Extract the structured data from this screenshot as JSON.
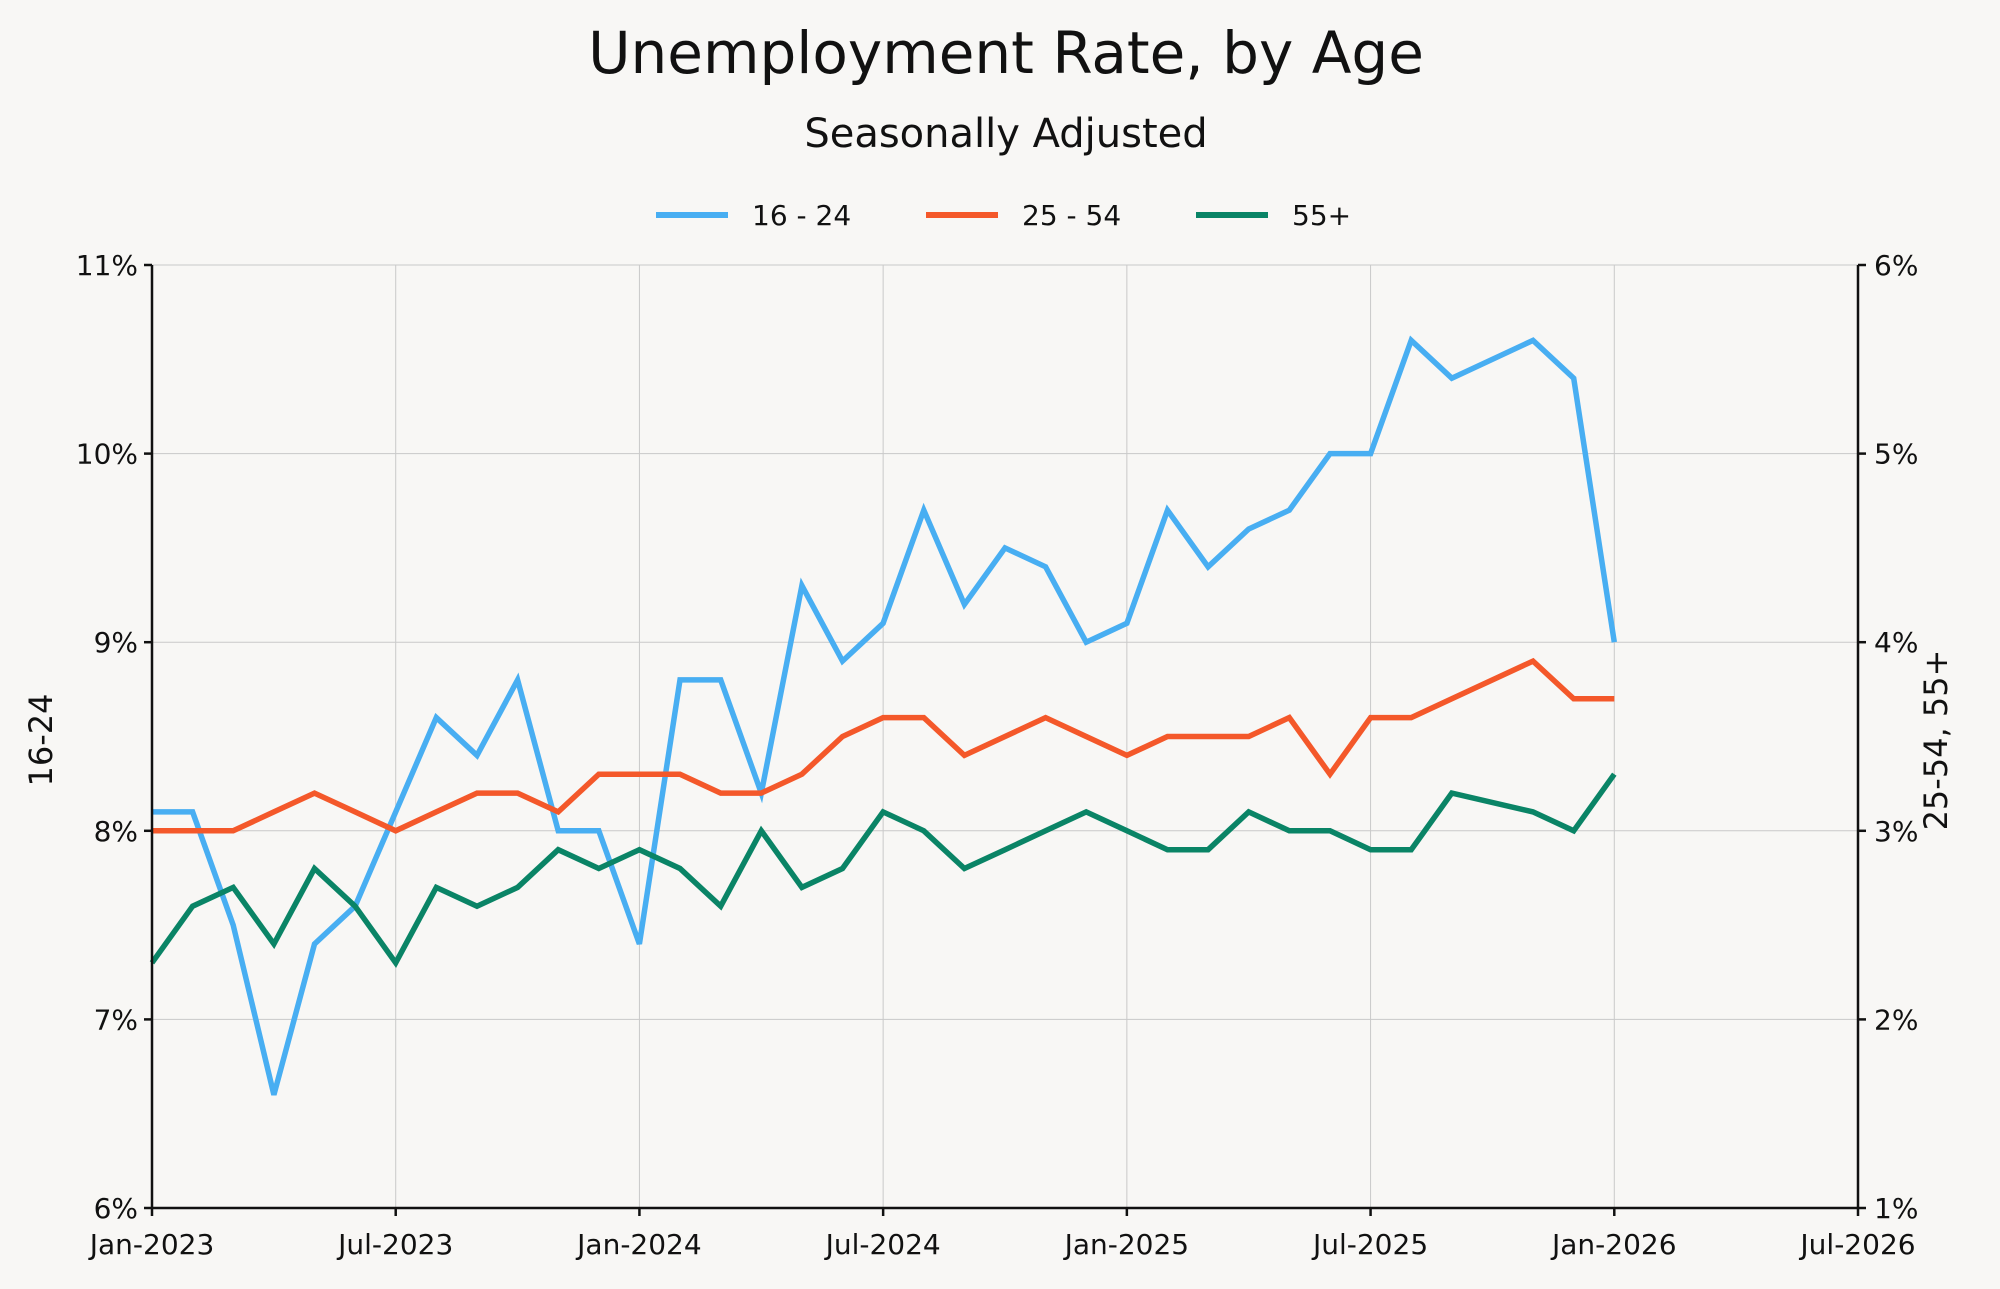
{
  "chart_data": {
    "type": "line",
    "title": "Unemployment Rate, by Age",
    "subtitle": "Seasonally Adjusted",
    "y_left_label": "16-24",
    "y_right_label": "25-54, 55+",
    "x_start": "2023-01",
    "x_end": "2026-07",
    "x_ticks": [
      {
        "date": "2023-01",
        "label": "Jan-2023"
      },
      {
        "date": "2023-07",
        "label": "Jul-2023"
      },
      {
        "date": "2024-01",
        "label": "Jan-2024"
      },
      {
        "date": "2024-07",
        "label": "Jul-2024"
      },
      {
        "date": "2025-01",
        "label": "Jan-2025"
      },
      {
        "date": "2025-07",
        "label": "Jul-2025"
      },
      {
        "date": "2026-01",
        "label": "Jan-2026"
      },
      {
        "date": "2026-07",
        "label": "Jul-2026"
      }
    ],
    "y_left_range": [
      6,
      11
    ],
    "y_left_ticks": [
      {
        "value": 6,
        "label": "6%"
      },
      {
        "value": 7,
        "label": "7%"
      },
      {
        "value": 8,
        "label": "8%"
      },
      {
        "value": 9,
        "label": "9%"
      },
      {
        "value": 10,
        "label": "10%"
      },
      {
        "value": 11,
        "label": "11%"
      }
    ],
    "y_right_range": [
      1,
      6
    ],
    "y_right_ticks": [
      {
        "value": 1,
        "label": "1%"
      },
      {
        "value": 2,
        "label": "2%"
      },
      {
        "value": 3,
        "label": "3%"
      },
      {
        "value": 4,
        "label": "4%"
      },
      {
        "value": 5,
        "label": "5%"
      },
      {
        "value": 6,
        "label": "6%"
      }
    ],
    "grid": true,
    "legend_position": "top-center",
    "series": [
      {
        "name": "16 - 24",
        "axis": "left",
        "color": "#48aef2",
        "points": [
          [
            "2023-01",
            8.1
          ],
          [
            "2023-02",
            8.1
          ],
          [
            "2023-03",
            7.5
          ],
          [
            "2023-04",
            6.6
          ],
          [
            "2023-05",
            7.4
          ],
          [
            "2023-06",
            7.6
          ],
          [
            "2023-07",
            8.1
          ],
          [
            "2023-08",
            8.6
          ],
          [
            "2023-09",
            8.4
          ],
          [
            "2023-10",
            8.8
          ],
          [
            "2023-11",
            8.0
          ],
          [
            "2023-12",
            8.0
          ],
          [
            "2024-01",
            7.4
          ],
          [
            "2024-02",
            8.8
          ],
          [
            "2024-03",
            8.8
          ],
          [
            "2024-04",
            8.2
          ],
          [
            "2024-05",
            9.3
          ],
          [
            "2024-06",
            8.9
          ],
          [
            "2024-07",
            9.1
          ],
          [
            "2024-08",
            9.7
          ],
          [
            "2024-09",
            9.2
          ],
          [
            "2024-10",
            9.5
          ],
          [
            "2024-11",
            9.4
          ],
          [
            "2024-12",
            9.0
          ],
          [
            "2025-01",
            9.1
          ],
          [
            "2025-02",
            9.7
          ],
          [
            "2025-03",
            9.4
          ],
          [
            "2025-04",
            9.6
          ],
          [
            "2025-05",
            9.7
          ],
          [
            "2025-06",
            10.0
          ],
          [
            "2025-07",
            10.0
          ],
          [
            "2025-08",
            10.6
          ],
          [
            "2025-09",
            10.4
          ],
          [
            "2025-11",
            10.6
          ],
          [
            "2025-12",
            10.4
          ],
          [
            "2026-01",
            9.0
          ]
        ]
      },
      {
        "name": "25 - 54",
        "axis": "right",
        "color": "#f4582a",
        "points": [
          [
            "2023-01",
            3.0
          ],
          [
            "2023-02",
            3.0
          ],
          [
            "2023-03",
            3.0
          ],
          [
            "2023-04",
            3.1
          ],
          [
            "2023-05",
            3.2
          ],
          [
            "2023-06",
            3.1
          ],
          [
            "2023-07",
            3.0
          ],
          [
            "2023-08",
            3.1
          ],
          [
            "2023-09",
            3.2
          ],
          [
            "2023-10",
            3.2
          ],
          [
            "2023-11",
            3.1
          ],
          [
            "2023-12",
            3.3
          ],
          [
            "2024-01",
            3.3
          ],
          [
            "2024-02",
            3.3
          ],
          [
            "2024-03",
            3.2
          ],
          [
            "2024-04",
            3.2
          ],
          [
            "2024-05",
            3.3
          ],
          [
            "2024-06",
            3.5
          ],
          [
            "2024-07",
            3.6
          ],
          [
            "2024-08",
            3.6
          ],
          [
            "2024-09",
            3.4
          ],
          [
            "2024-10",
            3.5
          ],
          [
            "2024-11",
            3.6
          ],
          [
            "2024-12",
            3.5
          ],
          [
            "2025-01",
            3.4
          ],
          [
            "2025-02",
            3.5
          ],
          [
            "2025-03",
            3.5
          ],
          [
            "2025-04",
            3.5
          ],
          [
            "2025-05",
            3.6
          ],
          [
            "2025-06",
            3.3
          ],
          [
            "2025-07",
            3.6
          ],
          [
            "2025-08",
            3.6
          ],
          [
            "2025-09",
            3.7
          ],
          [
            "2025-11",
            3.9
          ],
          [
            "2025-12",
            3.7
          ],
          [
            "2026-01",
            3.7
          ]
        ]
      },
      {
        "name": "55+",
        "axis": "right",
        "color": "#0a8466",
        "points": [
          [
            "2023-01",
            2.3
          ],
          [
            "2023-02",
            2.6
          ],
          [
            "2023-03",
            2.7
          ],
          [
            "2023-04",
            2.4
          ],
          [
            "2023-05",
            2.8
          ],
          [
            "2023-06",
            2.6
          ],
          [
            "2023-07",
            2.3
          ],
          [
            "2023-08",
            2.7
          ],
          [
            "2023-09",
            2.6
          ],
          [
            "2023-10",
            2.7
          ],
          [
            "2023-11",
            2.9
          ],
          [
            "2023-12",
            2.8
          ],
          [
            "2024-01",
            2.9
          ],
          [
            "2024-02",
            2.8
          ],
          [
            "2024-03",
            2.6
          ],
          [
            "2024-04",
            3.0
          ],
          [
            "2024-05",
            2.7
          ],
          [
            "2024-06",
            2.8
          ],
          [
            "2024-07",
            3.1
          ],
          [
            "2024-08",
            3.0
          ],
          [
            "2024-09",
            2.8
          ],
          [
            "2024-10",
            2.9
          ],
          [
            "2024-11",
            3.0
          ],
          [
            "2024-12",
            3.1
          ],
          [
            "2025-01",
            3.0
          ],
          [
            "2025-02",
            2.9
          ],
          [
            "2025-03",
            2.9
          ],
          [
            "2025-04",
            3.1
          ],
          [
            "2025-05",
            3.0
          ],
          [
            "2025-06",
            3.0
          ],
          [
            "2025-07",
            2.9
          ],
          [
            "2025-08",
            2.9
          ],
          [
            "2025-09",
            3.2
          ],
          [
            "2025-11",
            3.1
          ],
          [
            "2025-12",
            3.0
          ],
          [
            "2026-01",
            3.3
          ]
        ]
      }
    ]
  }
}
